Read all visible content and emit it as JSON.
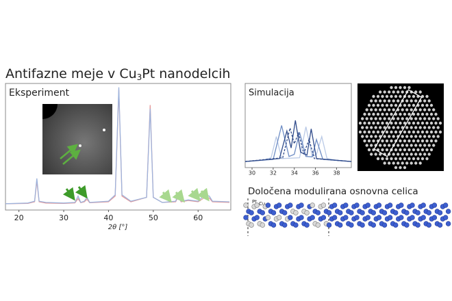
{
  "title": {
    "prefix": "Antifazne meje v Cu",
    "subscript": "3",
    "suffix": "Pt nanodelcih"
  },
  "structure": {
    "caption": "Določena modulirana osnovna celica",
    "atom_labels": [
      "Pt",
      "Cu"
    ]
  },
  "chart_data": [
    {
      "type": "line",
      "title": "Eksperiment",
      "xlabel": "2θ [°]",
      "xlim": [
        17,
        67.3
      ],
      "xticks": [
        20,
        30,
        40,
        50,
        60
      ],
      "ylim": [
        0,
        100
      ],
      "x": [
        17,
        22,
        23.5,
        24,
        24.5,
        26,
        30,
        32.5,
        33.2,
        33.8,
        34.6,
        35.2,
        35.8,
        40,
        41.5,
        42.3,
        43,
        45,
        48.5,
        49.3,
        50,
        52,
        55,
        55.6,
        56.2,
        57.8,
        60,
        61.5,
        62.5,
        63.2,
        67
      ],
      "series": [
        {
          "color": "#e69a9a",
          "values": [
            5,
            5.2,
            6.5,
            23,
            6.5,
            5.5,
            5.2,
            5.6,
            9,
            5.8,
            6.5,
            8.5,
            5.8,
            6.5,
            11,
            95,
            11,
            6.5,
            10,
            83,
            10,
            6,
            6.5,
            11,
            6.5,
            7.5,
            6.5,
            10,
            9.5,
            6.5,
            6
          ]
        },
        {
          "color": "#9db3dc",
          "values": [
            5,
            5.5,
            7,
            25,
            7,
            6,
            5.5,
            6,
            11,
            6,
            7,
            10,
            6,
            7,
            12,
            97,
            12,
            7,
            10,
            80,
            10,
            6,
            7,
            13,
            7,
            8,
            7,
            12,
            11,
            7,
            6.5
          ]
        }
      ]
    },
    {
      "type": "line",
      "title": "Simulacija",
      "xlim": [
        29.35,
        39.4
      ],
      "xticks": [
        30,
        32,
        34,
        36,
        38
      ],
      "ylim": [
        0,
        100
      ],
      "series": [
        {
          "color": "#b9c9e6",
          "x": [
            29.35,
            31,
            31.8,
            32.3,
            32.8,
            34.5,
            35.1,
            35.7,
            36.1,
            36.6,
            37.1,
            38,
            39.4
          ],
          "values": [
            3,
            6,
            12,
            62,
            10,
            12,
            85,
            15,
            20,
            62,
            10,
            6,
            3
          ],
          "dash": false
        },
        {
          "color": "#6d8cc4",
          "x": [
            29.35,
            32,
            32.8,
            33.5,
            34,
            34.5,
            35.1,
            35.7,
            36.1,
            36.7,
            39.4
          ],
          "values": [
            3,
            8,
            88,
            15,
            20,
            72,
            15,
            14,
            55,
            8,
            3
          ],
          "dash": false
        },
        {
          "color": "#2f4a8a",
          "x": [
            29.35,
            32.6,
            33.3,
            33.7,
            34.1,
            34.6,
            35.2,
            35.6,
            36.1,
            39.4
          ],
          "values": [
            3,
            10,
            75,
            35,
            100,
            25,
            18,
            80,
            10,
            3
          ],
          "dash": false
        },
        {
          "color": "#2f4a8a",
          "x": [
            29.35,
            32.9,
            33.6,
            34,
            34.4,
            34.9,
            35.4,
            35.9,
            39.4
          ],
          "values": [
            3,
            12,
            82,
            45,
            70,
            22,
            55,
            10,
            3
          ],
          "dash": true
        }
      ]
    }
  ]
}
